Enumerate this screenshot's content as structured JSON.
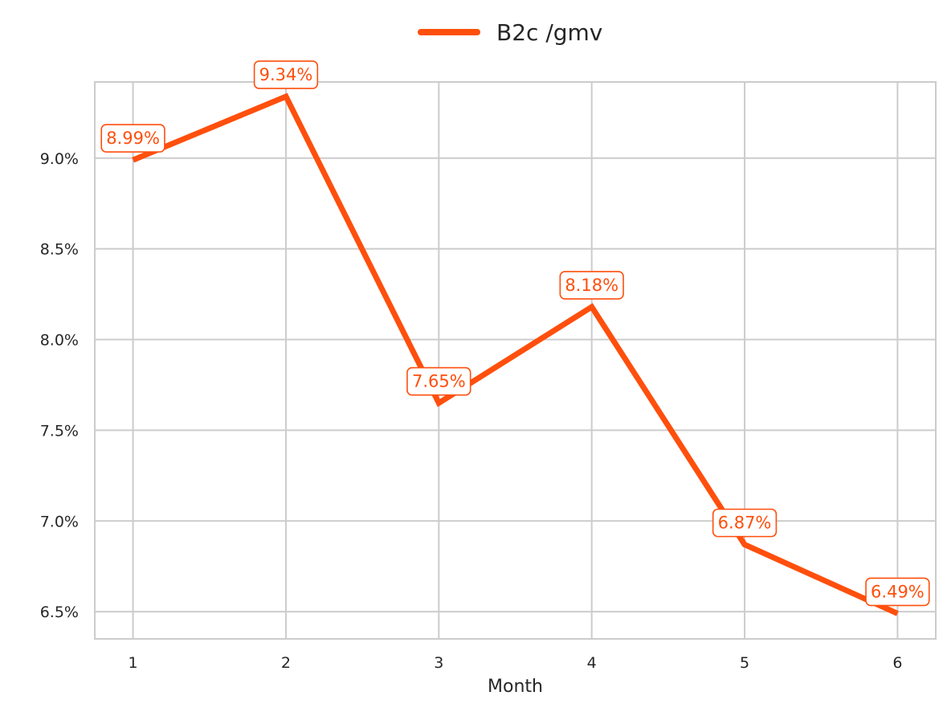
{
  "chart_data": {
    "type": "line",
    "xlabel": "Month",
    "ylabel": "",
    "x": [
      1,
      2,
      3,
      4,
      5,
      6
    ],
    "x_ticks": [
      "1",
      "2",
      "3",
      "4",
      "5",
      "6"
    ],
    "xlim": [
      0.75,
      6.25
    ],
    "ylim": [
      6.35,
      9.42
    ],
    "y_ticks": [
      6.5,
      7.0,
      7.5,
      8.0,
      8.5,
      9.0
    ],
    "y_tick_labels": [
      "6.5%",
      "7.0%",
      "7.5%",
      "8.0%",
      "8.5%",
      "9.0%"
    ],
    "grid": true,
    "legend_position": "top-center",
    "series": [
      {
        "name": "B2c /gmv",
        "color": "#ff4f0d",
        "values": [
          8.99,
          9.34,
          7.65,
          8.18,
          6.87,
          6.49
        ],
        "labels": [
          "8.99%",
          "9.34%",
          "7.65%",
          "8.18%",
          "6.87%",
          "6.49%"
        ]
      }
    ]
  }
}
